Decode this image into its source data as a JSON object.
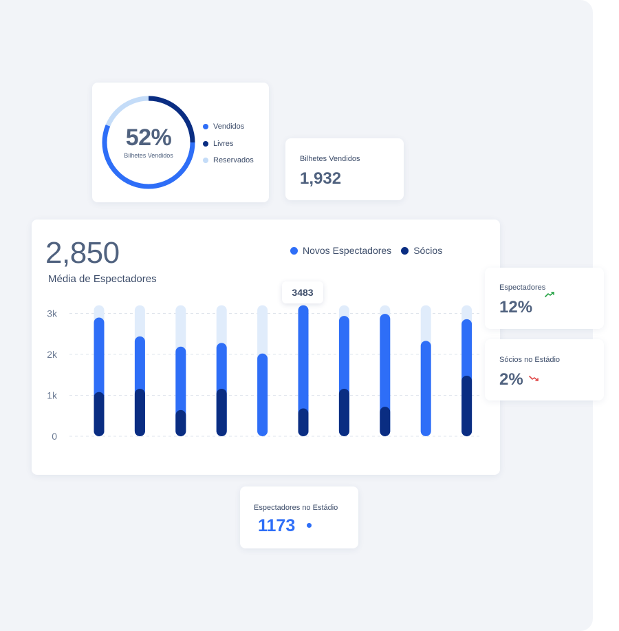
{
  "donut_card": {
    "percent": "52%",
    "caption": "Bilhetes Vendidos",
    "segments": [
      {
        "label": "Vendidos",
        "color": "#2e6ef7"
      },
      {
        "label": "Livres",
        "color": "#0a2d82"
      },
      {
        "label": "Reservados",
        "color": "#c4dcf8"
      }
    ]
  },
  "bilhetes_card": {
    "label": "Bilhetes Vendidos",
    "value": "1,932"
  },
  "espectadores_card": {
    "label": "Espectadores",
    "value": "12%",
    "trend": "up",
    "trend_color": "#25a244",
    "icon": "trend-up-icon"
  },
  "socios_card": {
    "label": "Sócios no Estádio",
    "value": "2%",
    "trend": "down",
    "trend_color": "#e04848",
    "icon": "trend-down-icon"
  },
  "estadio_card": {
    "label": "Espectadores no Estádio",
    "value": "1173",
    "icon": "live-dot-icon"
  },
  "main_chart": {
    "big_value": "2,850",
    "big_label": "Média de Espectadores",
    "tooltip": "3483"
  },
  "chart_data": {
    "type": "bar",
    "stacked": true,
    "categories": [
      "",
      "",
      "",
      "",
      "",
      "",
      "",
      "",
      "",
      ""
    ],
    "yticks": [
      "0",
      "1k",
      "2k",
      "3k"
    ],
    "ylim": [
      0,
      3500
    ],
    "grid": true,
    "legend_position": "top-right",
    "capacity": 3200,
    "capacity_color": "#e0ecfb",
    "series": [
      {
        "name": "Novos Espectadores",
        "color": "#2e6ef7",
        "values": [
          1820,
          1280,
          1550,
          1120,
          2020,
          2520,
          1780,
          2270,
          2330,
          1380
        ]
      },
      {
        "name": "Sócios",
        "color": "#0a2d82",
        "values": [
          1080,
          1160,
          640,
          1160,
          0,
          680,
          1160,
          720,
          0,
          1480
        ]
      }
    ]
  }
}
